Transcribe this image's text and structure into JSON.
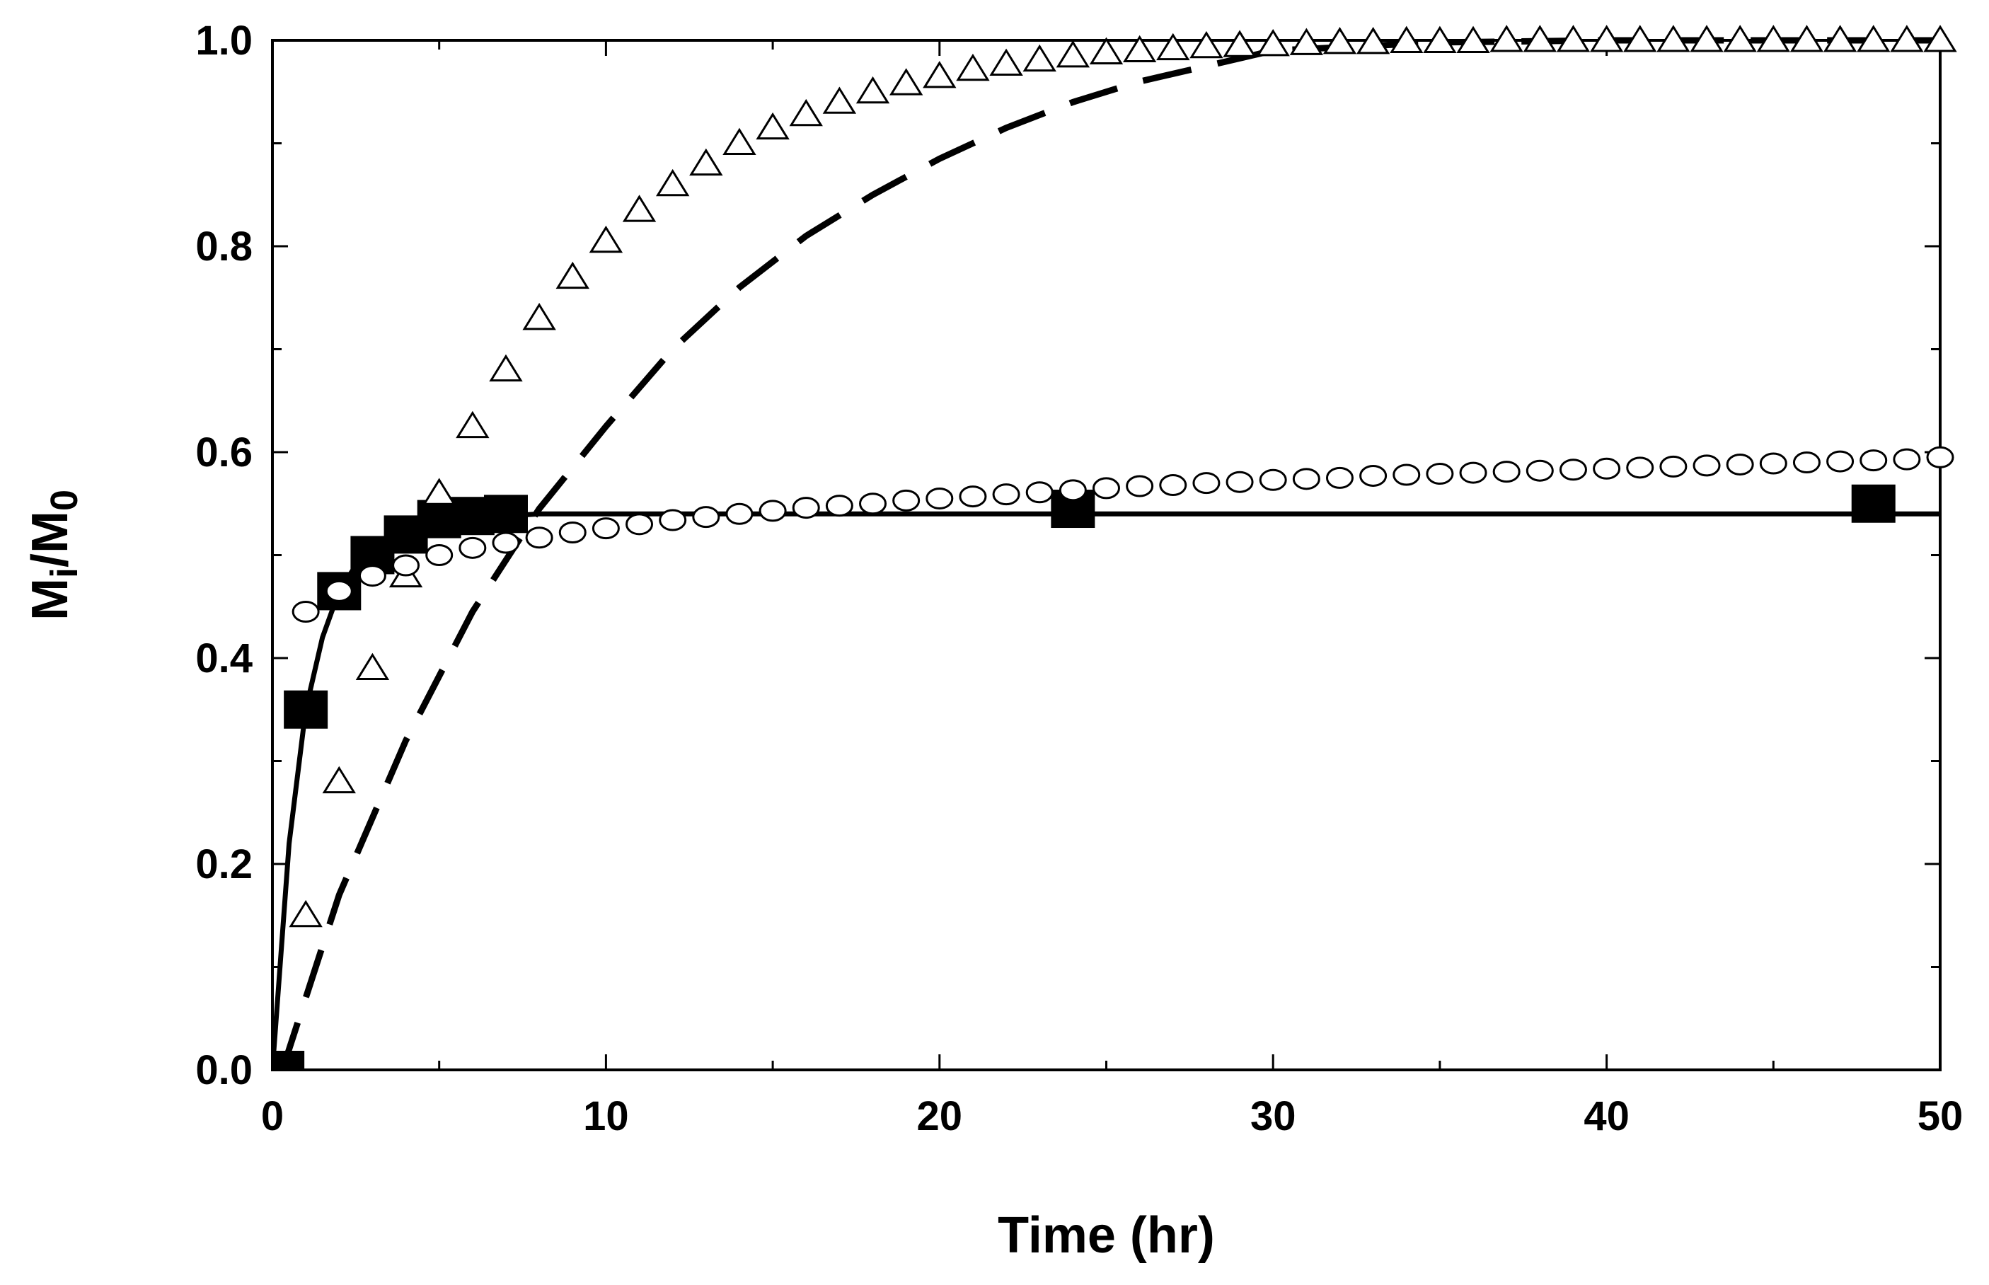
{
  "chart_data": {
    "type": "scatter",
    "title": "",
    "xlabel": "Time (hr)",
    "ylabel": {
      "base": "M",
      "sub1": "i",
      "sep": "/M",
      "sub2": "0"
    },
    "xlim": [
      0,
      50
    ],
    "ylim": [
      0,
      1.0
    ],
    "xticks": [
      {
        "value": 0,
        "label": "0"
      },
      {
        "value": 10,
        "label": "10"
      },
      {
        "value": 20,
        "label": "20"
      },
      {
        "value": 30,
        "label": "30"
      },
      {
        "value": 40,
        "label": "40"
      },
      {
        "value": 50,
        "label": "50"
      }
    ],
    "yticks": [
      {
        "value": 0.0,
        "label": "0.0"
      },
      {
        "value": 0.2,
        "label": "0.2"
      },
      {
        "value": 0.4,
        "label": "0.4"
      },
      {
        "value": 0.6,
        "label": "0.6"
      },
      {
        "value": 0.8,
        "label": "0.8"
      },
      {
        "value": 1.0,
        "label": "1.0"
      }
    ],
    "grid": false,
    "series": [
      {
        "name": "solid-fit",
        "kind": "line",
        "style": "solid",
        "color": "#000000",
        "x": [
          0,
          0.5,
          1,
          1.5,
          2,
          2.5,
          3,
          4,
          5,
          6,
          7,
          8,
          10,
          20,
          30,
          40,
          50
        ],
        "y": [
          0,
          0.22,
          0.35,
          0.42,
          0.465,
          0.49,
          0.505,
          0.52,
          0.53,
          0.535,
          0.538,
          0.54,
          0.54,
          0.54,
          0.54,
          0.54,
          0.54
        ]
      },
      {
        "name": "dashed-fit",
        "kind": "line",
        "style": "dashed",
        "color": "#000000",
        "x": [
          0.3,
          2,
          4,
          6,
          8,
          10,
          12,
          14,
          16,
          18,
          20,
          22,
          24,
          26,
          28,
          30,
          35,
          40,
          45,
          50
        ],
        "y": [
          0,
          0.17,
          0.32,
          0.445,
          0.545,
          0.625,
          0.7,
          0.76,
          0.81,
          0.85,
          0.885,
          0.915,
          0.94,
          0.96,
          0.975,
          0.99,
          0.998,
          1.0,
          1.0,
          1.0
        ]
      },
      {
        "name": "filled-squares",
        "kind": "scatter",
        "marker": "square-filled",
        "color": "#000000",
        "x": [
          0.3,
          1,
          2,
          3,
          4,
          5,
          6,
          7,
          24,
          48
        ],
        "y": [
          0.0,
          0.35,
          0.465,
          0.5,
          0.52,
          0.535,
          0.538,
          0.54,
          0.545,
          0.55
        ]
      },
      {
        "name": "open-triangles",
        "kind": "scatter",
        "marker": "triangle-open",
        "color": "#000000",
        "x": [
          1,
          2,
          3,
          4,
          5,
          6,
          7,
          8,
          9,
          10,
          11,
          12,
          13,
          14,
          15,
          16,
          17,
          18,
          19,
          20,
          21,
          22,
          23,
          24,
          25,
          26,
          27,
          28,
          29,
          30,
          31,
          32,
          33,
          34,
          35,
          36,
          37,
          38,
          39,
          40,
          41,
          42,
          43,
          44,
          45,
          46,
          47,
          48,
          49,
          50
        ],
        "y": [
          0.15,
          0.28,
          0.39,
          0.48,
          0.56,
          0.625,
          0.68,
          0.73,
          0.77,
          0.805,
          0.835,
          0.86,
          0.88,
          0.9,
          0.915,
          0.928,
          0.94,
          0.95,
          0.958,
          0.965,
          0.972,
          0.977,
          0.981,
          0.985,
          0.988,
          0.99,
          0.992,
          0.994,
          0.995,
          0.996,
          0.997,
          0.998,
          0.998,
          0.999,
          0.999,
          0.999,
          1.0,
          1.0,
          1.0,
          1.0,
          1.0,
          1.0,
          1.0,
          1.0,
          1.0,
          1.0,
          1.0,
          1.0,
          1.0,
          1.0
        ]
      },
      {
        "name": "open-circles",
        "kind": "scatter",
        "marker": "circle-open",
        "color": "#000000",
        "x": [
          1,
          2,
          3,
          4,
          5,
          6,
          7,
          8,
          9,
          10,
          11,
          12,
          13,
          14,
          15,
          16,
          17,
          18,
          19,
          20,
          21,
          22,
          23,
          24,
          25,
          26,
          27,
          28,
          29,
          30,
          31,
          32,
          33,
          34,
          35,
          36,
          37,
          38,
          39,
          40,
          41,
          42,
          43,
          44,
          45,
          46,
          47,
          48,
          49,
          50
        ],
        "y": [
          0.445,
          0.465,
          0.48,
          0.49,
          0.5,
          0.507,
          0.512,
          0.517,
          0.522,
          0.526,
          0.53,
          0.534,
          0.537,
          0.54,
          0.543,
          0.546,
          0.548,
          0.55,
          0.553,
          0.555,
          0.557,
          0.559,
          0.561,
          0.563,
          0.565,
          0.567,
          0.568,
          0.57,
          0.571,
          0.573,
          0.574,
          0.575,
          0.577,
          0.578,
          0.579,
          0.58,
          0.581,
          0.582,
          0.583,
          0.584,
          0.585,
          0.586,
          0.587,
          0.588,
          0.589,
          0.59,
          0.591,
          0.592,
          0.593,
          0.595
        ]
      }
    ]
  }
}
